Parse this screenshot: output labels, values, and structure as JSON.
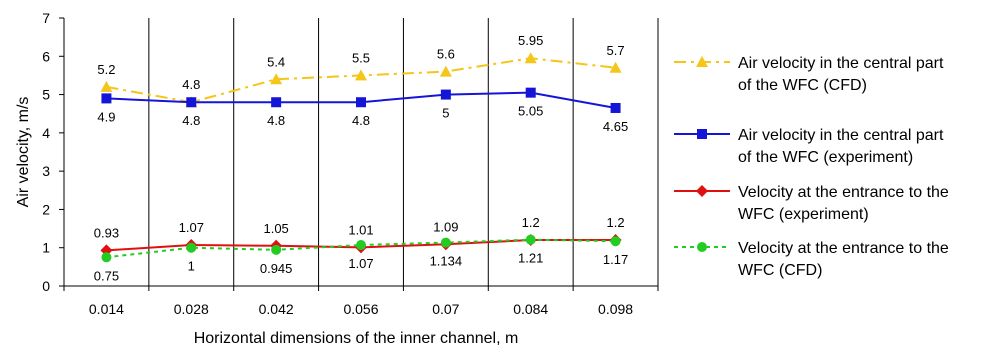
{
  "chart_data": {
    "type": "line",
    "title": "",
    "xlabel": "Horizontal dimensions of the inner channel, m",
    "ylabel": "Air velocity, m/s",
    "ylim": [
      0,
      7
    ],
    "yticks": [
      "0",
      "1",
      "2",
      "3",
      "4",
      "5",
      "6",
      "7"
    ],
    "categories": [
      "0.014",
      "0.028",
      "0.042",
      "0.056",
      "0.07",
      "0.084",
      "0.098"
    ],
    "grid": "vertical",
    "legend_position": "right",
    "series": [
      {
        "name_lines": [
          "Air velocity in the central part",
          "of the WFC (CFD)"
        ],
        "values": [
          5.2,
          4.8,
          5.4,
          5.5,
          5.6,
          5.95,
          5.7
        ],
        "labels": [
          "5.2",
          "4.8",
          "5.4",
          "5.5",
          "5.6",
          "5.95",
          "5.7"
        ],
        "color": "#F5C518",
        "dash": "dashdot",
        "marker": "triangle",
        "label_side": "above"
      },
      {
        "name_lines": [
          "Air velocity in the central part",
          "of the WFC (experiment)"
        ],
        "values": [
          4.9,
          4.8,
          4.8,
          4.8,
          5.0,
          5.05,
          4.65
        ],
        "labels": [
          "4.9",
          "4.8",
          "4.8",
          "4.8",
          "5",
          "5.05",
          "4.65"
        ],
        "color": "#1515D8",
        "dash": "solid",
        "marker": "square",
        "label_side": "below"
      },
      {
        "name_lines": [
          "Velocity at the entrance to the",
          "WFC (experiment)"
        ],
        "values": [
          0.93,
          1.07,
          1.05,
          1.01,
          1.09,
          1.2,
          1.2
        ],
        "labels": [
          "0.93",
          "1.07",
          "1.05",
          "1.01",
          "1.09",
          "1.2",
          "1.2"
        ],
        "color": "#E01010",
        "dash": "solid",
        "marker": "diamond",
        "label_side": "above"
      },
      {
        "name_lines": [
          "Velocity at the entrance to the",
          "WFC (CFD)"
        ],
        "values": [
          0.75,
          1.0,
          0.945,
          1.07,
          1.134,
          1.21,
          1.17
        ],
        "labels": [
          "0.75",
          "1",
          "0.945",
          "1.07",
          "1.134",
          "1.21",
          "1.17"
        ],
        "color": "#22CC22",
        "dash": "dotted",
        "marker": "circle",
        "label_side": "below"
      }
    ]
  }
}
